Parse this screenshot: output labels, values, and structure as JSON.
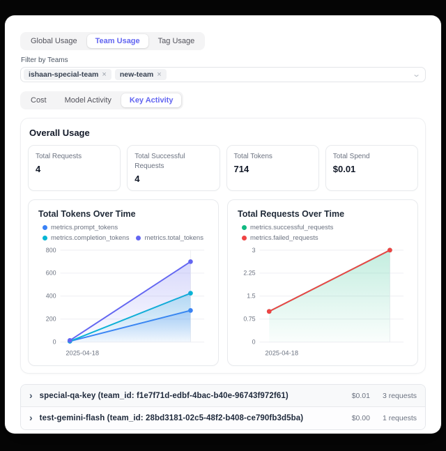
{
  "tabs_primary": {
    "items": [
      {
        "label": "Global Usage",
        "active": false
      },
      {
        "label": "Team Usage",
        "active": true
      },
      {
        "label": "Tag Usage",
        "active": false
      }
    ]
  },
  "filter": {
    "label": "Filter by Teams",
    "tags": [
      {
        "label": "ishaan-special-team",
        "remove_icon": "×"
      },
      {
        "label": "new-team",
        "remove_icon": "×"
      }
    ],
    "chevron_icon": "⌄"
  },
  "tabs_secondary": {
    "items": [
      {
        "label": "Cost",
        "active": false
      },
      {
        "label": "Model Activity",
        "active": false
      },
      {
        "label": "Key Activity",
        "active": true
      }
    ]
  },
  "overall": {
    "title": "Overall Usage",
    "stats": [
      {
        "label": "Total Requests",
        "value": "4"
      },
      {
        "label": "Total Successful Requests",
        "value": "4"
      },
      {
        "label": "Total Tokens",
        "value": "714"
      },
      {
        "label": "Total Spend",
        "value": "$0.01"
      }
    ]
  },
  "chart_data": [
    {
      "type": "area",
      "title": "Total Tokens Over Time",
      "x": [
        "2025-04-18",
        ""
      ],
      "x_tick_labels": [
        "2025-04-18"
      ],
      "series": [
        {
          "name": "metrics.prompt_tokens",
          "color": "#3b82f6",
          "values": [
            7,
            275
          ],
          "fill": true
        },
        {
          "name": "metrics.completion_tokens",
          "color": "#06b6d4",
          "values": [
            7,
            425
          ],
          "fill": true
        },
        {
          "name": "metrics.total_tokens",
          "color": "#6366f1",
          "values": [
            14,
            700
          ],
          "fill": true
        }
      ],
      "ylim": [
        0,
        800
      ],
      "yticks": [
        0,
        200,
        400,
        600,
        800
      ],
      "grid": true,
      "legend_position": "top",
      "legend_layout": "wrap"
    },
    {
      "type": "area",
      "title": "Total Requests Over Time",
      "x": [
        "2025-04-18",
        ""
      ],
      "x_tick_labels": [
        "2025-04-18"
      ],
      "series": [
        {
          "name": "metrics.successful_requests",
          "color": "#10b981",
          "values": [
            1,
            3
          ],
          "fill": true
        },
        {
          "name": "metrics.failed_requests",
          "color": "#ef4444",
          "values": [
            1,
            3
          ],
          "fill": false
        }
      ],
      "ylim": [
        0,
        3
      ],
      "yticks": [
        0,
        0.75,
        1.5,
        2.25,
        3
      ],
      "grid": true,
      "legend_position": "top",
      "legend_layout": "column"
    }
  ],
  "key_rows": [
    {
      "expander_icon": "›",
      "label": "special-qa-key (team_id: f1e7f71d-edbf-4bac-b40e-96743f972f61)",
      "spend": "$0.01",
      "requests": "3 requests"
    },
    {
      "expander_icon": "›",
      "label": "test-gemini-flash (team_id: 28bd3181-02c5-48f2-b408-ce790fb3d5ba)",
      "spend": "$0.00",
      "requests": "1 requests"
    }
  ]
}
